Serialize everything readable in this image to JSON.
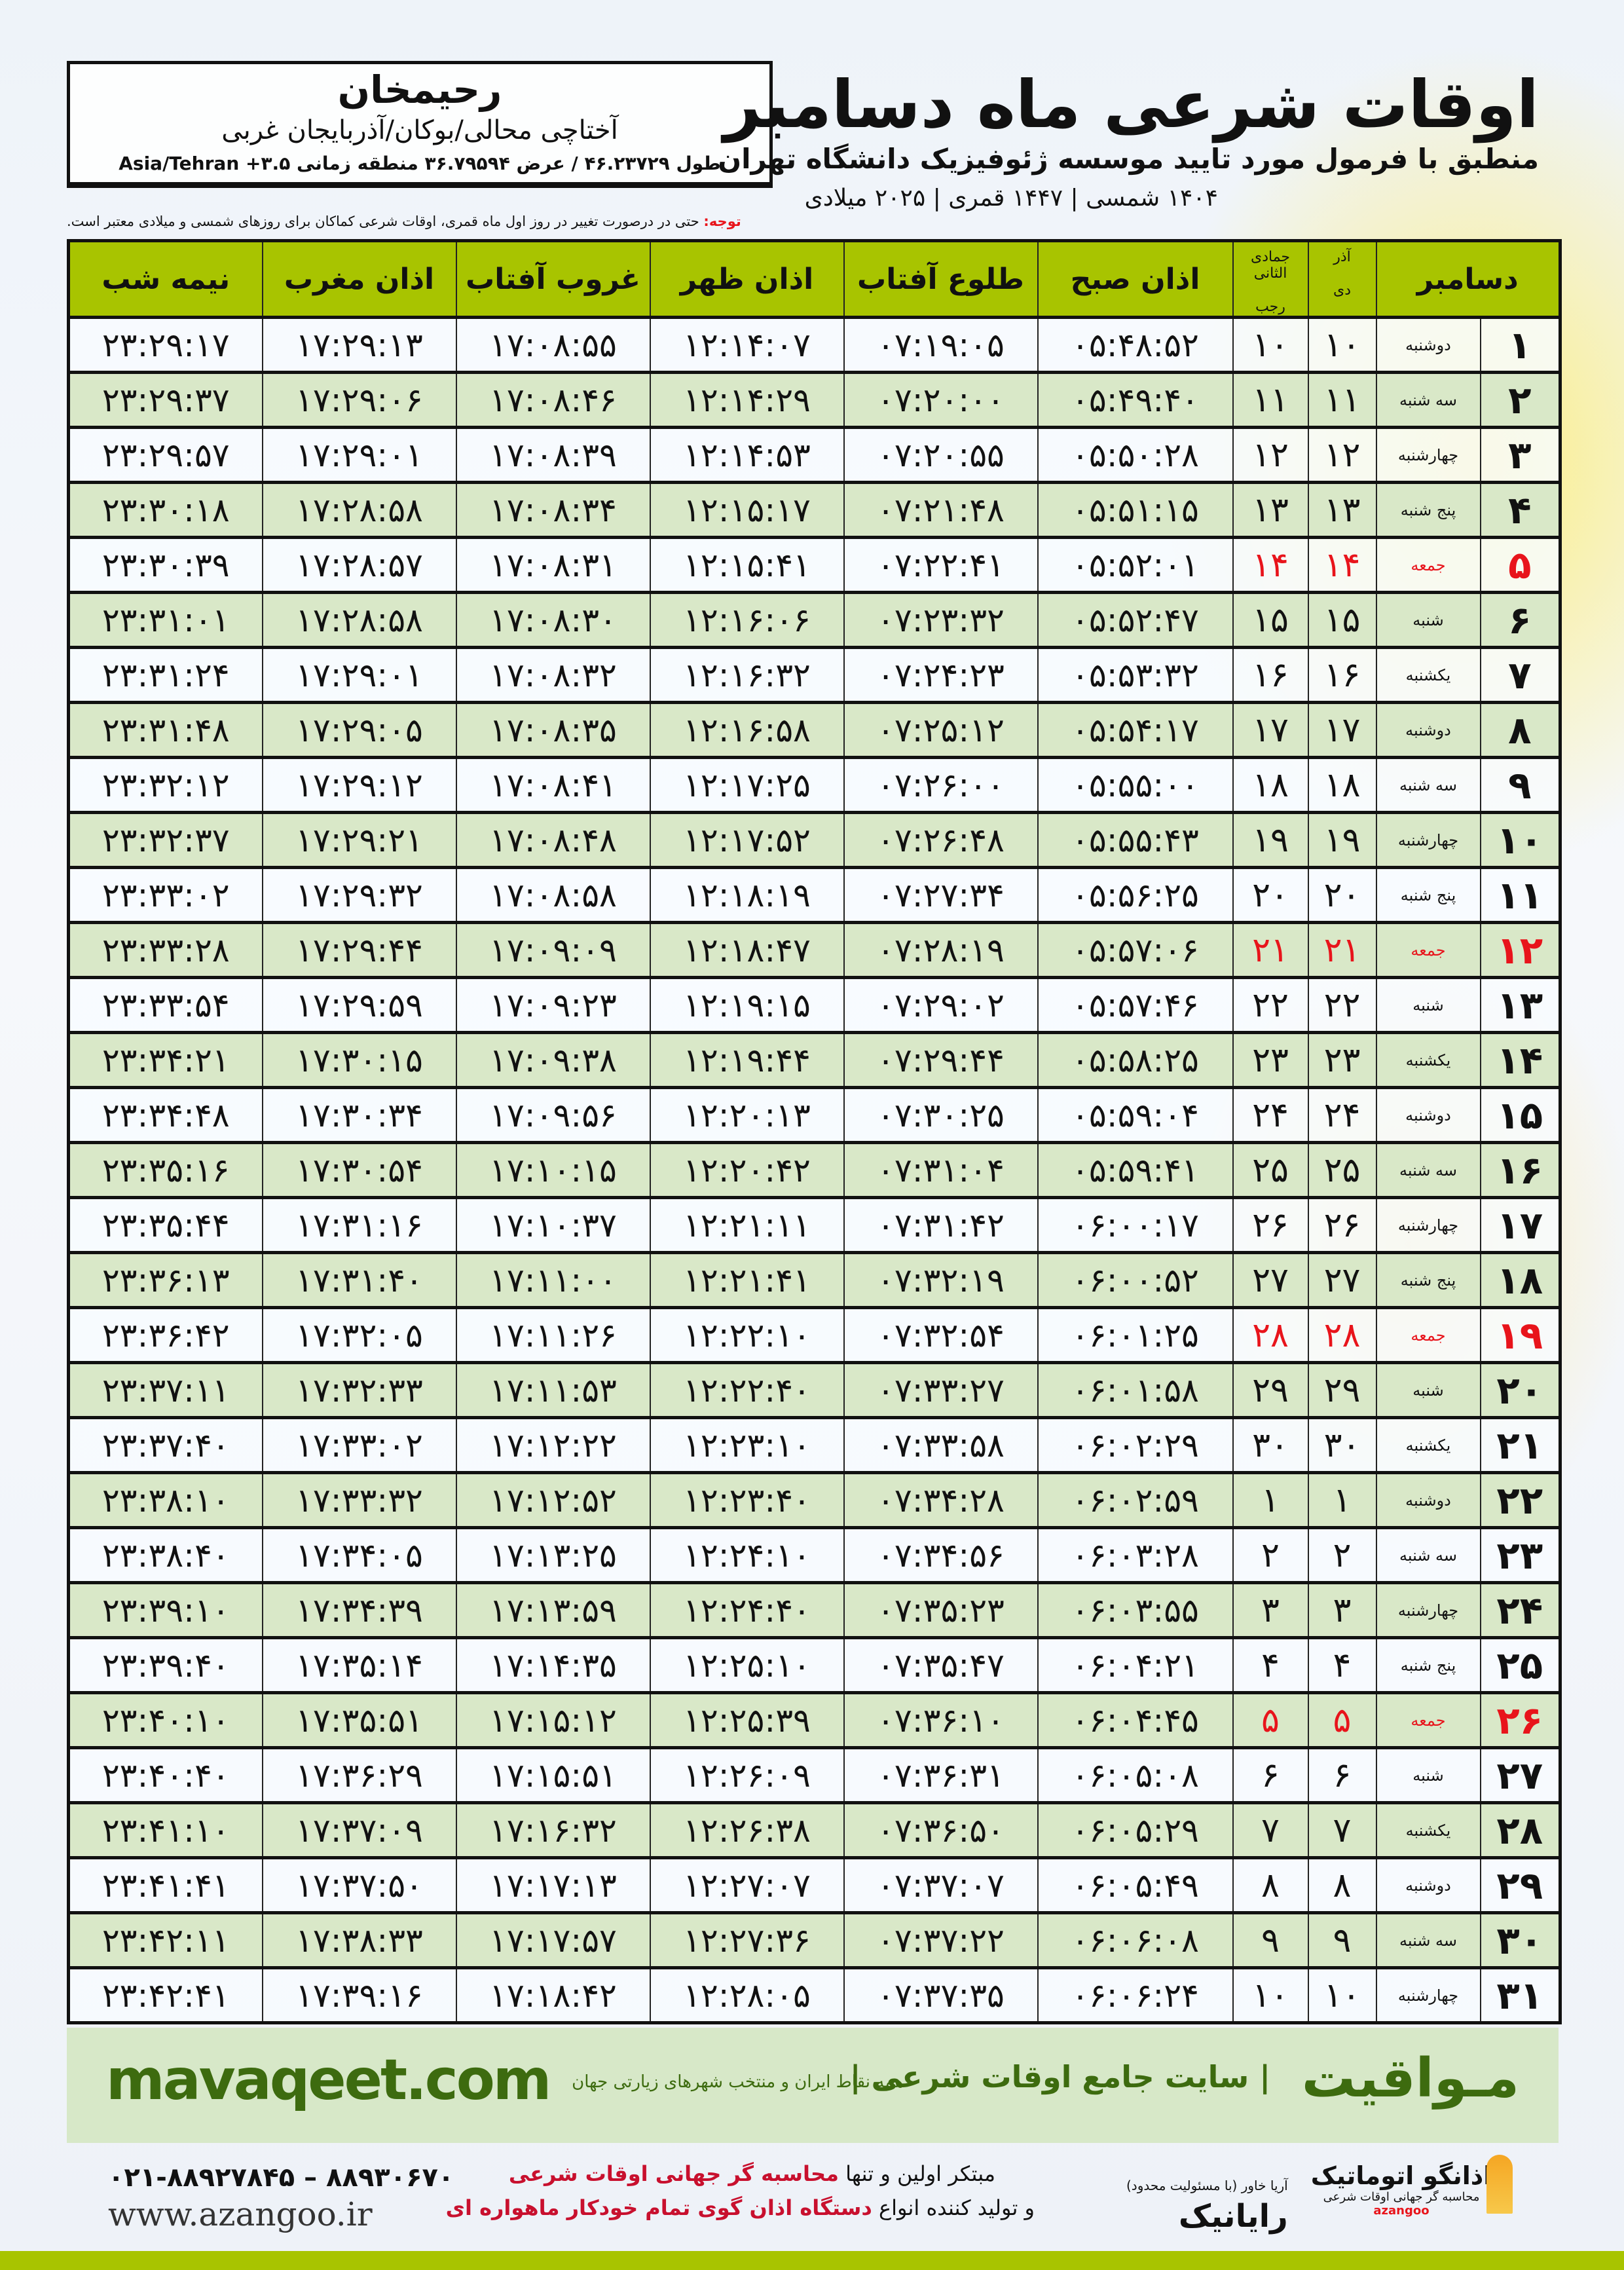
{
  "location": {
    "name": "رحیمخان",
    "path": "آختاچی محالی/بوکان/آذربایجان غربی",
    "coords": "طول ۴۶.۲۳۷۲۹ / عرض ۳۶.۷۹۵۹۴ منطقه زمانی ۳.۵+ Asia/Tehran"
  },
  "header": {
    "title": "اوقات شرعی ماه دسامبر",
    "subtitle": "منطبق با فرمول مورد تایید موسسه ژئوفیزیک دانشگاه تهران",
    "dateline": "۱۴۰۴ شمسی | ۱۴۴۷ قمری | ۲۰۲۵ میلادی"
  },
  "note": {
    "label": "توجه:",
    "text": " حتی در درصورت تغییر در روز اول ماه قمری، اوقات شرعی کماکان برای روزهای شمسی و میلادی معتبر است."
  },
  "colors": {
    "header_green": "#a8c400",
    "row_green": "#d9e8c8",
    "friday_red": "#e8141b",
    "brand_green": "#3d6b0f"
  },
  "table": {
    "headers": {
      "month": "دسامبر",
      "shamsi_top": "آذر",
      "shamsi_bottom": "دی",
      "qamari_top": "جمادی الثانی",
      "qamari_bottom": "رجب",
      "fajr": "اذان صبح",
      "sunrise": "طلوع آفتاب",
      "dhuhr": "اذان ظهر",
      "sunset": "غروب آفتاب",
      "maghrib": "اذان مغرب",
      "midnight": "نیمه شب"
    },
    "rows": [
      {
        "day": "۱",
        "weekday": "دوشنبه",
        "shamsi": "۱۰",
        "qamari": "۱۰",
        "fajr": "۰۵:۴۸:۵۲",
        "sunrise": "۰۷:۱۹:۰۵",
        "dhuhr": "۱۲:۱۴:۰۷",
        "sunset": "۱۷:۰۸:۵۵",
        "maghrib": "۱۷:۲۹:۱۳",
        "midnight": "۲۳:۲۹:۱۷"
      },
      {
        "day": "۲",
        "weekday": "سه شنبه",
        "shamsi": "۱۱",
        "qamari": "۱۱",
        "fajr": "۰۵:۴۹:۴۰",
        "sunrise": "۰۷:۲۰:۰۰",
        "dhuhr": "۱۲:۱۴:۲۹",
        "sunset": "۱۷:۰۸:۴۶",
        "maghrib": "۱۷:۲۹:۰۶",
        "midnight": "۲۳:۲۹:۳۷"
      },
      {
        "day": "۳",
        "weekday": "چهارشنبه",
        "shamsi": "۱۲",
        "qamari": "۱۲",
        "fajr": "۰۵:۵۰:۲۸",
        "sunrise": "۰۷:۲۰:۵۵",
        "dhuhr": "۱۲:۱۴:۵۳",
        "sunset": "۱۷:۰۸:۳۹",
        "maghrib": "۱۷:۲۹:۰۱",
        "midnight": "۲۳:۲۹:۵۷"
      },
      {
        "day": "۴",
        "weekday": "پنج شنبه",
        "shamsi": "۱۳",
        "qamari": "۱۳",
        "fajr": "۰۵:۵۱:۱۵",
        "sunrise": "۰۷:۲۱:۴۸",
        "dhuhr": "۱۲:۱۵:۱۷",
        "sunset": "۱۷:۰۸:۳۴",
        "maghrib": "۱۷:۲۸:۵۸",
        "midnight": "۲۳:۳۰:۱۸"
      },
      {
        "day": "۵",
        "weekday": "جمعه",
        "shamsi": "۱۴",
        "qamari": "۱۴",
        "fajr": "۰۵:۵۲:۰۱",
        "sunrise": "۰۷:۲۲:۴۱",
        "dhuhr": "۱۲:۱۵:۴۱",
        "sunset": "۱۷:۰۸:۳۱",
        "maghrib": "۱۷:۲۸:۵۷",
        "midnight": "۲۳:۳۰:۳۹",
        "holiday": true
      },
      {
        "day": "۶",
        "weekday": "شنبه",
        "shamsi": "۱۵",
        "qamari": "۱۵",
        "fajr": "۰۵:۵۲:۴۷",
        "sunrise": "۰۷:۲۳:۳۲",
        "dhuhr": "۱۲:۱۶:۰۶",
        "sunset": "۱۷:۰۸:۳۰",
        "maghrib": "۱۷:۲۸:۵۸",
        "midnight": "۲۳:۳۱:۰۱"
      },
      {
        "day": "۷",
        "weekday": "یکشنبه",
        "shamsi": "۱۶",
        "qamari": "۱۶",
        "fajr": "۰۵:۵۳:۳۲",
        "sunrise": "۰۷:۲۴:۲۳",
        "dhuhr": "۱۲:۱۶:۳۲",
        "sunset": "۱۷:۰۸:۳۲",
        "maghrib": "۱۷:۲۹:۰۱",
        "midnight": "۲۳:۳۱:۲۴"
      },
      {
        "day": "۸",
        "weekday": "دوشنبه",
        "shamsi": "۱۷",
        "qamari": "۱۷",
        "fajr": "۰۵:۵۴:۱۷",
        "sunrise": "۰۷:۲۵:۱۲",
        "dhuhr": "۱۲:۱۶:۵۸",
        "sunset": "۱۷:۰۸:۳۵",
        "maghrib": "۱۷:۲۹:۰۵",
        "midnight": "۲۳:۳۱:۴۸"
      },
      {
        "day": "۹",
        "weekday": "سه شنبه",
        "shamsi": "۱۸",
        "qamari": "۱۸",
        "fajr": "۰۵:۵۵:۰۰",
        "sunrise": "۰۷:۲۶:۰۰",
        "dhuhr": "۱۲:۱۷:۲۵",
        "sunset": "۱۷:۰۸:۴۱",
        "maghrib": "۱۷:۲۹:۱۲",
        "midnight": "۲۳:۳۲:۱۲"
      },
      {
        "day": "۱۰",
        "weekday": "چهارشنبه",
        "shamsi": "۱۹",
        "qamari": "۱۹",
        "fajr": "۰۵:۵۵:۴۳",
        "sunrise": "۰۷:۲۶:۴۸",
        "dhuhr": "۱۲:۱۷:۵۲",
        "sunset": "۱۷:۰۸:۴۸",
        "maghrib": "۱۷:۲۹:۲۱",
        "midnight": "۲۳:۳۲:۳۷"
      },
      {
        "day": "۱۱",
        "weekday": "پنج شنبه",
        "shamsi": "۲۰",
        "qamari": "۲۰",
        "fajr": "۰۵:۵۶:۲۵",
        "sunrise": "۰۷:۲۷:۳۴",
        "dhuhr": "۱۲:۱۸:۱۹",
        "sunset": "۱۷:۰۸:۵۸",
        "maghrib": "۱۷:۲۹:۳۲",
        "midnight": "۲۳:۳۳:۰۲"
      },
      {
        "day": "۱۲",
        "weekday": "جمعه",
        "shamsi": "۲۱",
        "qamari": "۲۱",
        "fajr": "۰۵:۵۷:۰۶",
        "sunrise": "۰۷:۲۸:۱۹",
        "dhuhr": "۱۲:۱۸:۴۷",
        "sunset": "۱۷:۰۹:۰۹",
        "maghrib": "۱۷:۲۹:۴۴",
        "midnight": "۲۳:۳۳:۲۸",
        "holiday": true
      },
      {
        "day": "۱۳",
        "weekday": "شنبه",
        "shamsi": "۲۲",
        "qamari": "۲۲",
        "fajr": "۰۵:۵۷:۴۶",
        "sunrise": "۰۷:۲۹:۰۲",
        "dhuhr": "۱۲:۱۹:۱۵",
        "sunset": "۱۷:۰۹:۲۳",
        "maghrib": "۱۷:۲۹:۵۹",
        "midnight": "۲۳:۳۳:۵۴"
      },
      {
        "day": "۱۴",
        "weekday": "یکشنبه",
        "shamsi": "۲۳",
        "qamari": "۲۳",
        "fajr": "۰۵:۵۸:۲۵",
        "sunrise": "۰۷:۲۹:۴۴",
        "dhuhr": "۱۲:۱۹:۴۴",
        "sunset": "۱۷:۰۹:۳۸",
        "maghrib": "۱۷:۳۰:۱۵",
        "midnight": "۲۳:۳۴:۲۱"
      },
      {
        "day": "۱۵",
        "weekday": "دوشنبه",
        "shamsi": "۲۴",
        "qamari": "۲۴",
        "fajr": "۰۵:۵۹:۰۴",
        "sunrise": "۰۷:۳۰:۲۵",
        "dhuhr": "۱۲:۲۰:۱۳",
        "sunset": "۱۷:۰۹:۵۶",
        "maghrib": "۱۷:۳۰:۳۴",
        "midnight": "۲۳:۳۴:۴۸"
      },
      {
        "day": "۱۶",
        "weekday": "سه شنبه",
        "shamsi": "۲۵",
        "qamari": "۲۵",
        "fajr": "۰۵:۵۹:۴۱",
        "sunrise": "۰۷:۳۱:۰۴",
        "dhuhr": "۱۲:۲۰:۴۲",
        "sunset": "۱۷:۱۰:۱۵",
        "maghrib": "۱۷:۳۰:۵۴",
        "midnight": "۲۳:۳۵:۱۶"
      },
      {
        "day": "۱۷",
        "weekday": "چهارشنبه",
        "shamsi": "۲۶",
        "qamari": "۲۶",
        "fajr": "۰۶:۰۰:۱۷",
        "sunrise": "۰۷:۳۱:۴۲",
        "dhuhr": "۱۲:۲۱:۱۱",
        "sunset": "۱۷:۱۰:۳۷",
        "maghrib": "۱۷:۳۱:۱۶",
        "midnight": "۲۳:۳۵:۴۴"
      },
      {
        "day": "۱۸",
        "weekday": "پنج شنبه",
        "shamsi": "۲۷",
        "qamari": "۲۷",
        "fajr": "۰۶:۰۰:۵۲",
        "sunrise": "۰۷:۳۲:۱۹",
        "dhuhr": "۱۲:۲۱:۴۱",
        "sunset": "۱۷:۱۱:۰۰",
        "maghrib": "۱۷:۳۱:۴۰",
        "midnight": "۲۳:۳۶:۱۳"
      },
      {
        "day": "۱۹",
        "weekday": "جمعه",
        "shamsi": "۲۸",
        "qamari": "۲۸",
        "fajr": "۰۶:۰۱:۲۵",
        "sunrise": "۰۷:۳۲:۵۴",
        "dhuhr": "۱۲:۲۲:۱۰",
        "sunset": "۱۷:۱۱:۲۶",
        "maghrib": "۱۷:۳۲:۰۵",
        "midnight": "۲۳:۳۶:۴۲",
        "holiday": true
      },
      {
        "day": "۲۰",
        "weekday": "شنبه",
        "shamsi": "۲۹",
        "qamari": "۲۹",
        "fajr": "۰۶:۰۱:۵۸",
        "sunrise": "۰۷:۳۳:۲۷",
        "dhuhr": "۱۲:۲۲:۴۰",
        "sunset": "۱۷:۱۱:۵۳",
        "maghrib": "۱۷:۳۲:۳۳",
        "midnight": "۲۳:۳۷:۱۱"
      },
      {
        "day": "۲۱",
        "weekday": "یکشنبه",
        "shamsi": "۳۰",
        "qamari": "۳۰",
        "fajr": "۰۶:۰۲:۲۹",
        "sunrise": "۰۷:۳۳:۵۸",
        "dhuhr": "۱۲:۲۳:۱۰",
        "sunset": "۱۷:۱۲:۲۲",
        "maghrib": "۱۷:۳۳:۰۲",
        "midnight": "۲۳:۳۷:۴۰"
      },
      {
        "day": "۲۲",
        "weekday": "دوشنبه",
        "shamsi": "۱",
        "qamari": "۱",
        "fajr": "۰۶:۰۲:۵۹",
        "sunrise": "۰۷:۳۴:۲۸",
        "dhuhr": "۱۲:۲۳:۴۰",
        "sunset": "۱۷:۱۲:۵۲",
        "maghrib": "۱۷:۳۳:۳۲",
        "midnight": "۲۳:۳۸:۱۰"
      },
      {
        "day": "۲۳",
        "weekday": "سه شنبه",
        "shamsi": "۲",
        "qamari": "۲",
        "fajr": "۰۶:۰۳:۲۸",
        "sunrise": "۰۷:۳۴:۵۶",
        "dhuhr": "۱۲:۲۴:۱۰",
        "sunset": "۱۷:۱۳:۲۵",
        "maghrib": "۱۷:۳۴:۰۵",
        "midnight": "۲۳:۳۸:۴۰"
      },
      {
        "day": "۲۴",
        "weekday": "چهارشنبه",
        "shamsi": "۳",
        "qamari": "۳",
        "fajr": "۰۶:۰۳:۵۵",
        "sunrise": "۰۷:۳۵:۲۳",
        "dhuhr": "۱۲:۲۴:۴۰",
        "sunset": "۱۷:۱۳:۵۹",
        "maghrib": "۱۷:۳۴:۳۹",
        "midnight": "۲۳:۳۹:۱۰"
      },
      {
        "day": "۲۵",
        "weekday": "پنج شنبه",
        "shamsi": "۴",
        "qamari": "۴",
        "fajr": "۰۶:۰۴:۲۱",
        "sunrise": "۰۷:۳۵:۴۷",
        "dhuhr": "۱۲:۲۵:۱۰",
        "sunset": "۱۷:۱۴:۳۵",
        "maghrib": "۱۷:۳۵:۱۴",
        "midnight": "۲۳:۳۹:۴۰"
      },
      {
        "day": "۲۶",
        "weekday": "جمعه",
        "shamsi": "۵",
        "qamari": "۵",
        "fajr": "۰۶:۰۴:۴۵",
        "sunrise": "۰۷:۳۶:۱۰",
        "dhuhr": "۱۲:۲۵:۳۹",
        "sunset": "۱۷:۱۵:۱۲",
        "maghrib": "۱۷:۳۵:۵۱",
        "midnight": "۲۳:۴۰:۱۰",
        "holiday": true
      },
      {
        "day": "۲۷",
        "weekday": "شنبه",
        "shamsi": "۶",
        "qamari": "۶",
        "fajr": "۰۶:۰۵:۰۸",
        "sunrise": "۰۷:۳۶:۳۱",
        "dhuhr": "۱۲:۲۶:۰۹",
        "sunset": "۱۷:۱۵:۵۱",
        "maghrib": "۱۷:۳۶:۲۹",
        "midnight": "۲۳:۴۰:۴۰"
      },
      {
        "day": "۲۸",
        "weekday": "یکشنبه",
        "shamsi": "۷",
        "qamari": "۷",
        "fajr": "۰۶:۰۵:۲۹",
        "sunrise": "۰۷:۳۶:۵۰",
        "dhuhr": "۱۲:۲۶:۳۸",
        "sunset": "۱۷:۱۶:۳۲",
        "maghrib": "۱۷:۳۷:۰۹",
        "midnight": "۲۳:۴۱:۱۰"
      },
      {
        "day": "۲۹",
        "weekday": "دوشنبه",
        "shamsi": "۸",
        "qamari": "۸",
        "fajr": "۰۶:۰۵:۴۹",
        "sunrise": "۰۷:۳۷:۰۷",
        "dhuhr": "۱۲:۲۷:۰۷",
        "sunset": "۱۷:۱۷:۱۳",
        "maghrib": "۱۷:۳۷:۵۰",
        "midnight": "۲۳:۴۱:۴۱"
      },
      {
        "day": "۳۰",
        "weekday": "سه شنبه",
        "shamsi": "۹",
        "qamari": "۹",
        "fajr": "۰۶:۰۶:۰۸",
        "sunrise": "۰۷:۳۷:۲۲",
        "dhuhr": "۱۲:۲۷:۳۶",
        "sunset": "۱۷:۱۷:۵۷",
        "maghrib": "۱۷:۳۸:۳۳",
        "midnight": "۲۳:۴۲:۱۱"
      },
      {
        "day": "۳۱",
        "weekday": "چهارشنبه",
        "shamsi": "۱۰",
        "qamari": "۱۰",
        "fajr": "۰۶:۰۶:۲۴",
        "sunrise": "۰۷:۳۷:۳۵",
        "dhuhr": "۱۲:۲۸:۰۵",
        "sunset": "۱۷:۱۸:۴۲",
        "maghrib": "۱۷:۳۹:۱۶",
        "midnight": "۲۳:۴۲:۴۱"
      }
    ]
  },
  "footer": {
    "site": "mavaqeet.com",
    "brand": "مـواقیت",
    "slogan": "| سایت جامع اوقات شرعی |",
    "slogan2": "همه نقاط ایران و منتخب شهرهای زیارتی جهان",
    "phone": "۰۲۱-۸۸۹۲۷۸۴۵ – ۸۸۹۳۰۶۷۰",
    "web": "www.azangoo.ir",
    "ad_line1_a": "مبتکر اولین و تنها ",
    "ad_line1_b": "محاسبه گر جهانی اوقات شرعی",
    "ad_line2_a": "و تولید کننده انواع ",
    "ad_line2_b": "دستگاه اذان گوی تمام خودکار ماهواره ای",
    "logo_rayanik": "رایانیک",
    "logo_rayanik_sub": "آریا خاور (با مسئولیت محدود)",
    "logo_azangoo": "اذانگو اتوماتیک",
    "logo_azangoo_sub": "محاسبه گر جهانی اوقات شرعی",
    "logo_azangoo_en": "azangoo"
  }
}
